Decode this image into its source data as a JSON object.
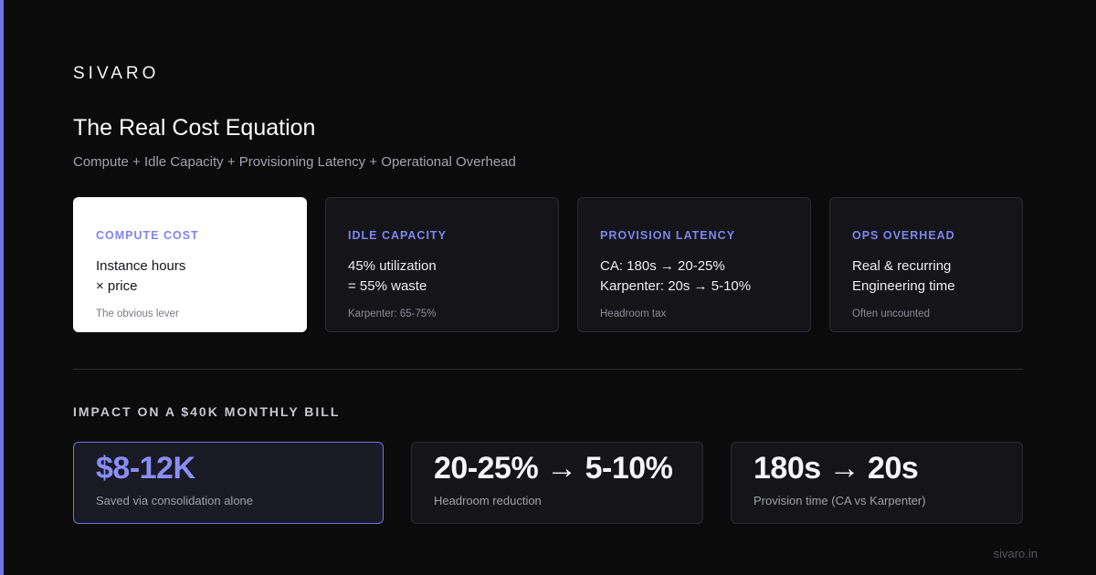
{
  "brand": "SIVARO",
  "title": "The Real Cost Equation",
  "subtitle": "Compute + Idle Capacity + Provisioning Latency + Operational Overhead",
  "cards": [
    {
      "label": "COMPUTE COST",
      "line1": "Instance hours",
      "line2": "× price",
      "note": "The obvious lever"
    },
    {
      "label": "IDLE CAPACITY",
      "line1": "45% utilization",
      "line2": "= 55% waste",
      "note": "Karpenter: 65-75%"
    },
    {
      "label": "PROVISION LATENCY",
      "line1": "CA: 180s → 20-25%",
      "line2": "Karpenter: 20s → 5-10%",
      "note": "Headroom tax"
    },
    {
      "label": "OPS OVERHEAD",
      "line1": "Real & recurring",
      "line2": "Engineering time",
      "note": "Often uncounted"
    }
  ],
  "impact": {
    "title": "IMPACT ON A $40K MONTHLY BILL",
    "stats": [
      {
        "value": "$8-12K",
        "caption": "Saved via consolidation alone"
      },
      {
        "value": "20-25% → 5-10%",
        "caption": "Headroom reduction"
      },
      {
        "value": "180s → 20s",
        "caption": "Provision time (CA vs Karpenter)"
      }
    ]
  },
  "footer": "sivaro.in",
  "colors": {
    "accent": "#6f73e8",
    "background": "#0b0b0c",
    "card": "#151519"
  }
}
